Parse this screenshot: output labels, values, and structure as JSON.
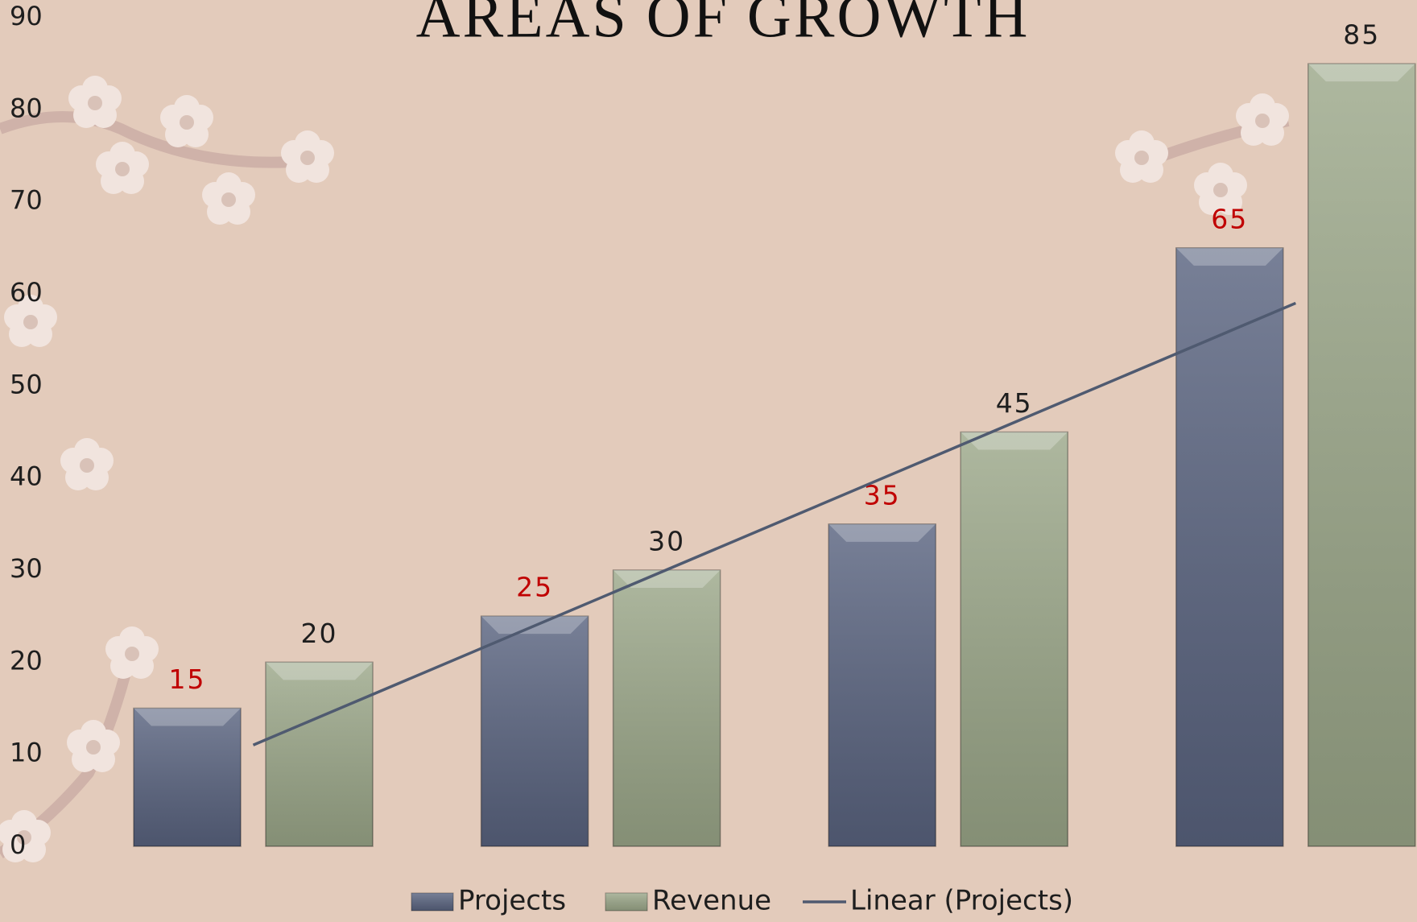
{
  "chart_data": {
    "type": "bar",
    "title": "AREAS OF GROWTH",
    "categories": [
      null,
      null,
      null,
      null
    ],
    "series": [
      {
        "name": "Projects",
        "color": "#5a6480",
        "label_color": "#c00000",
        "values": [
          15,
          25,
          35,
          65
        ]
      },
      {
        "name": "Revenue",
        "color": "#9ca88a",
        "label_color": "#1e1e1e",
        "values": [
          20,
          30,
          45,
          85
        ]
      }
    ],
    "trendline": {
      "name": "Linear (Projects)",
      "color": "#4f5a70",
      "values": [
        11,
        27,
        43,
        59
      ]
    },
    "ylim": [
      0,
      90
    ],
    "yticks": [
      0,
      10,
      20,
      30,
      40,
      50,
      60,
      70,
      80,
      90
    ],
    "grid": false,
    "legend": "bottom"
  }
}
